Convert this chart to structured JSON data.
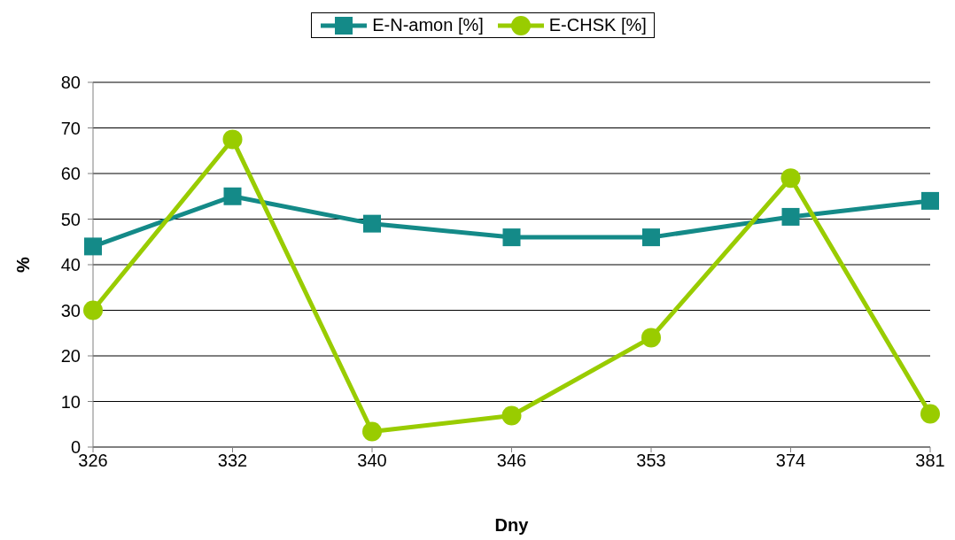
{
  "chart_data": {
    "type": "line",
    "xlabel": "Dny",
    "ylabel": "%",
    "categories": [
      "326",
      "332",
      "340",
      "346",
      "353",
      "374",
      "381"
    ],
    "series": [
      {
        "name": "E-N-amon [%]",
        "color": "#148a88",
        "marker": "square",
        "values": [
          44,
          55,
          49,
          46,
          46,
          50.5,
          54
        ]
      },
      {
        "name": "E-CHSK [%]",
        "color": "#99cc00",
        "marker": "circle",
        "values": [
          30,
          67.5,
          3.4,
          6.9,
          24,
          59,
          7.3
        ]
      }
    ],
    "ylim": [
      0,
      80
    ],
    "yticks": [
      0,
      10,
      20,
      30,
      40,
      50,
      60,
      70,
      80
    ],
    "grid": "y",
    "legend": "top"
  }
}
